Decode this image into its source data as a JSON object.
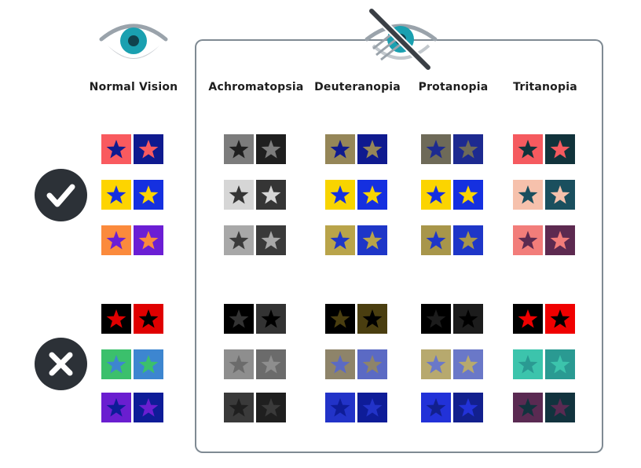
{
  "columns": [
    {
      "name": "normal",
      "label": "Normal Vision"
    },
    {
      "name": "achromatopsia",
      "label": "Achromatopsia"
    },
    {
      "name": "deuteranopia",
      "label": "Deuteranopia"
    },
    {
      "name": "protanopia",
      "label": "Protanopia"
    },
    {
      "name": "tritanopia",
      "label": "Tritanopia"
    }
  ],
  "icons": {
    "normal_vision": "eye-icon",
    "impaired_vision": "eye-slash-icon",
    "good": "checkmark-icon",
    "bad": "x-mark-icon"
  },
  "colors": {
    "frame_border": "#7f8a93",
    "badge_fill": "#2c3137",
    "eye_iris": "#1aa0b0",
    "eye_outline": "#9aa3ab",
    "eye_slash": "#3a3f45"
  },
  "groups": [
    {
      "name": "good",
      "rows": [
        {
          "normal": [
            {
              "bg": "#f95a5f",
              "star": "#0f1a8f"
            },
            {
              "bg": "#0f1a8f",
              "star": "#f95a5f"
            }
          ],
          "achromatopsia": [
            {
              "bg": "#7c7c7c",
              "star": "#1f1f1f"
            },
            {
              "bg": "#1f1f1f",
              "star": "#7c7c7c"
            }
          ],
          "deuteranopia": [
            {
              "bg": "#958658",
              "star": "#0f1a8f"
            },
            {
              "bg": "#0f1a8f",
              "star": "#958658"
            }
          ],
          "protanopia": [
            {
              "bg": "#6e6a58",
              "star": "#1d2a90"
            },
            {
              "bg": "#1d2a90",
              "star": "#6e6a58"
            }
          ],
          "tritanopia": [
            {
              "bg": "#f55a5f",
              "star": "#11333b"
            },
            {
              "bg": "#11333b",
              "star": "#f55a5f"
            }
          ]
        },
        {
          "normal": [
            {
              "bg": "#fdd400",
              "star": "#1530e0"
            },
            {
              "bg": "#1530e0",
              "star": "#fdd400"
            }
          ],
          "achromatopsia": [
            {
              "bg": "#d6d6d6",
              "star": "#353535"
            },
            {
              "bg": "#353535",
              "star": "#d6d6d6"
            }
          ],
          "deuteranopia": [
            {
              "bg": "#f8d400",
              "star": "#1530e0"
            },
            {
              "bg": "#1530e0",
              "star": "#f8d400"
            }
          ],
          "protanopia": [
            {
              "bg": "#fbd400",
              "star": "#1530e0"
            },
            {
              "bg": "#1530e0",
              "star": "#fbd400"
            }
          ],
          "tritanopia": [
            {
              "bg": "#f6c1ac",
              "star": "#1a4f5e"
            },
            {
              "bg": "#1a4f5e",
              "star": "#f6c1ac"
            }
          ]
        },
        {
          "normal": [
            {
              "bg": "#fb8a3c",
              "star": "#6b1ed4"
            },
            {
              "bg": "#6b1ed4",
              "star": "#fb8a3c"
            }
          ],
          "achromatopsia": [
            {
              "bg": "#a8a8a8",
              "star": "#3a3a3a"
            },
            {
              "bg": "#3a3a3a",
              "star": "#a8a8a8"
            }
          ],
          "deuteranopia": [
            {
              "bg": "#b9a44a",
              "star": "#1e36c8"
            },
            {
              "bg": "#1e36c8",
              "star": "#b9a44a"
            }
          ],
          "protanopia": [
            {
              "bg": "#a8964a",
              "star": "#1e36c8"
            },
            {
              "bg": "#1e36c8",
              "star": "#a8964a"
            }
          ],
          "tritanopia": [
            {
              "bg": "#f27d7a",
              "star": "#5d2a50"
            },
            {
              "bg": "#5d2a50",
              "star": "#f27d7a"
            }
          ]
        }
      ]
    },
    {
      "name": "bad",
      "rows": [
        {
          "normal": [
            {
              "bg": "#000000",
              "star": "#e00000"
            },
            {
              "bg": "#e00000",
              "star": "#000000"
            }
          ],
          "achromatopsia": [
            {
              "bg": "#000000",
              "star": "#333333"
            },
            {
              "bg": "#333333",
              "star": "#000000"
            }
          ],
          "deuteranopia": [
            {
              "bg": "#000000",
              "star": "#4a3e10"
            },
            {
              "bg": "#4a3e10",
              "star": "#000000"
            }
          ],
          "protanopia": [
            {
              "bg": "#000000",
              "star": "#1c1c1c"
            },
            {
              "bg": "#1c1c1c",
              "star": "#000000"
            }
          ],
          "tritanopia": [
            {
              "bg": "#000000",
              "star": "#f00000"
            },
            {
              "bg": "#f00000",
              "star": "#000000"
            }
          ]
        },
        {
          "normal": [
            {
              "bg": "#3bc06c",
              "star": "#3d86d0"
            },
            {
              "bg": "#3d86d0",
              "star": "#3bc06c"
            }
          ],
          "achromatopsia": [
            {
              "bg": "#8e8e8e",
              "star": "#6b6b6b"
            },
            {
              "bg": "#6b6b6b",
              "star": "#8e8e8e"
            }
          ],
          "deuteranopia": [
            {
              "bg": "#8e846a",
              "star": "#5b6ac4"
            },
            {
              "bg": "#5b6ac4",
              "star": "#8e846a"
            }
          ],
          "protanopia": [
            {
              "bg": "#b7a96e",
              "star": "#6a78c8"
            },
            {
              "bg": "#6a78c8",
              "star": "#b7a96e"
            }
          ],
          "tritanopia": [
            {
              "bg": "#3cc4ac",
              "star": "#2a9a92"
            },
            {
              "bg": "#2a9a92",
              "star": "#3cc4ac"
            }
          ]
        },
        {
          "normal": [
            {
              "bg": "#6a1ed0",
              "star": "#0e1c98"
            },
            {
              "bg": "#0e1c98",
              "star": "#6a1ed0"
            }
          ],
          "achromatopsia": [
            {
              "bg": "#3a3a3a",
              "star": "#1f1f1f"
            },
            {
              "bg": "#1f1f1f",
              "star": "#3a3a3a"
            }
          ],
          "deuteranopia": [
            {
              "bg": "#2233c8",
              "star": "#0e1c98"
            },
            {
              "bg": "#0e1c98",
              "star": "#2233c8"
            }
          ],
          "protanopia": [
            {
              "bg": "#2232d8",
              "star": "#12208e"
            },
            {
              "bg": "#12208e",
              "star": "#2232d8"
            }
          ],
          "tritanopia": [
            {
              "bg": "#5a2a52",
              "star": "#12333e"
            },
            {
              "bg": "#12333e",
              "star": "#5a2a52"
            }
          ]
        }
      ]
    }
  ]
}
